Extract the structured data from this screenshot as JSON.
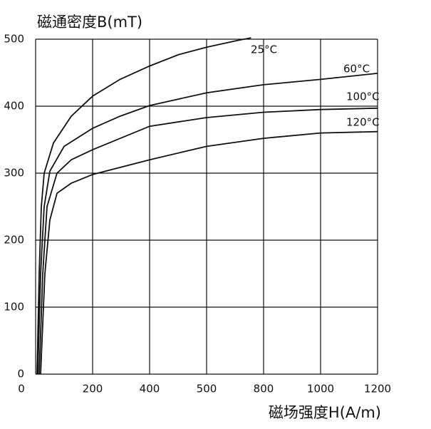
{
  "chart_data": {
    "type": "line",
    "title": "磁通密度B(mT)",
    "x_label": "磁场强度H(A/m)",
    "xlim": [
      0,
      1200
    ],
    "ylim": [
      0,
      500
    ],
    "xticks": [
      0,
      200,
      400,
      500,
      800,
      1000,
      1200
    ],
    "yticks": [
      0,
      100,
      200,
      300,
      400,
      500
    ],
    "grid": true,
    "series": [
      {
        "name": "25°C",
        "color": "#111111",
        "x": [
          5,
          12.5,
          20,
          30,
          62.5,
          125,
          200,
          296,
          400,
          451,
          500,
          661,
          734
        ],
        "values": [
          0,
          150,
          250,
          300,
          345,
          385,
          415,
          440,
          460,
          477,
          488,
          498,
          502
        ]
      },
      {
        "name": "60°C",
        "color": "#111111",
        "x": [
          7.5,
          17.5,
          30,
          50,
          100,
          200,
          296,
          400,
          500,
          800,
          1000,
          1200
        ],
        "values": [
          0,
          150,
          250,
          303,
          340,
          367,
          385,
          401,
          420,
          432,
          440,
          449
        ]
      },
      {
        "name": "100°C",
        "color": "#111111",
        "x": [
          12.5,
          25,
          40,
          75,
          125,
          200,
          400,
          500,
          800,
          1000,
          1200
        ],
        "values": [
          0,
          150,
          250,
          300,
          320,
          335,
          370,
          383,
          391,
          395,
          397
        ]
      },
      {
        "name": "120°C",
        "color": "#111111",
        "x": [
          17.5,
          32.5,
          50,
          75,
          125,
          200,
          400,
          500,
          800,
          1000,
          1200
        ],
        "values": [
          0,
          150,
          230,
          270,
          285,
          298,
          320,
          340,
          352,
          360,
          362
        ]
      }
    ]
  }
}
